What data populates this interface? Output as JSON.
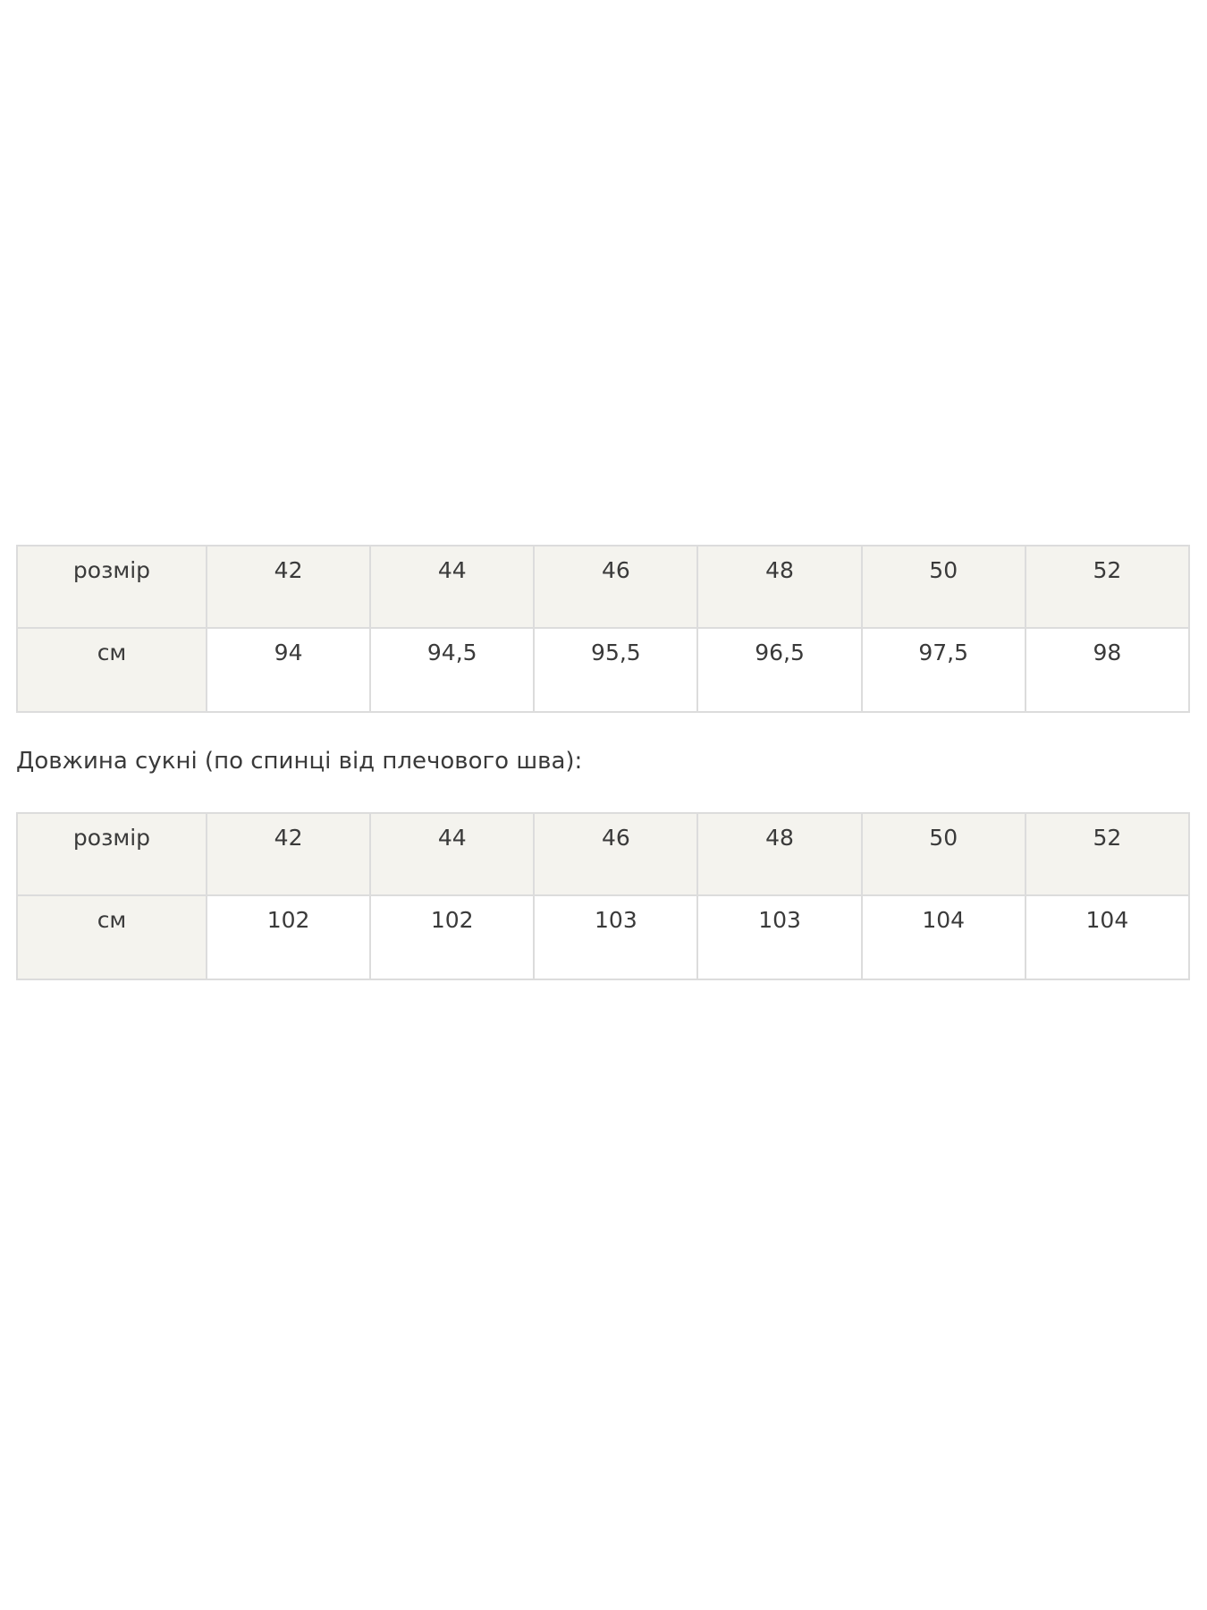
{
  "tables": [
    {
      "header": [
        "розмір",
        "42",
        "44",
        "46",
        "48",
        "50",
        "52"
      ],
      "row": [
        "см",
        "94",
        "94,5",
        "95,5",
        "96,5",
        "97,5",
        "98"
      ]
    },
    {
      "header": [
        "розмір",
        "42",
        "44",
        "46",
        "48",
        "50",
        "52"
      ],
      "row": [
        "см",
        "102",
        "102",
        "103",
        "103",
        "104",
        "104"
      ]
    }
  ],
  "caption": "Довжина сукні (по спинці від плечового шва):",
  "colors": {
    "header_bg": "#f4f3ee",
    "border": "#dcdcdc",
    "text": "#3a3a3a"
  }
}
